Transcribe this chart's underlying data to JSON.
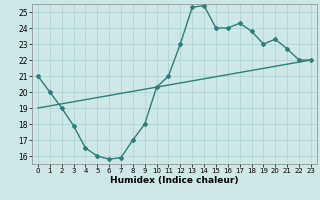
{
  "line1_x": [
    0,
    1,
    2,
    3,
    4,
    5,
    6,
    7,
    8,
    9,
    10,
    11,
    12,
    13,
    14,
    15,
    16,
    17,
    18,
    19,
    20,
    21,
    22,
    23
  ],
  "line1_y": [
    21.0,
    20.0,
    19.0,
    17.9,
    16.5,
    16.0,
    15.8,
    15.9,
    17.0,
    18.0,
    20.3,
    21.0,
    23.0,
    25.3,
    25.4,
    24.0,
    24.0,
    24.3,
    23.8,
    23.0,
    23.3,
    22.7,
    22.0,
    22.0
  ],
  "line2_x": [
    0,
    23
  ],
  "line2_y": [
    19.0,
    22.0
  ],
  "line_color": "#2e7d78",
  "bg_color": "#cde8e6",
  "grid_color": "#aacfcd",
  "xlabel": "Humidex (Indice chaleur)",
  "xlim": [
    -0.5,
    23.5
  ],
  "ylim": [
    15.5,
    25.5
  ],
  "yticks": [
    16,
    17,
    18,
    19,
    20,
    21,
    22,
    23,
    24,
    25
  ],
  "xticks": [
    0,
    1,
    2,
    3,
    4,
    5,
    6,
    7,
    8,
    9,
    10,
    11,
    12,
    13,
    14,
    15,
    16,
    17,
    18,
    19,
    20,
    21,
    22,
    23
  ],
  "marker": "D",
  "marker_size": 2.0,
  "line_width": 1.0
}
